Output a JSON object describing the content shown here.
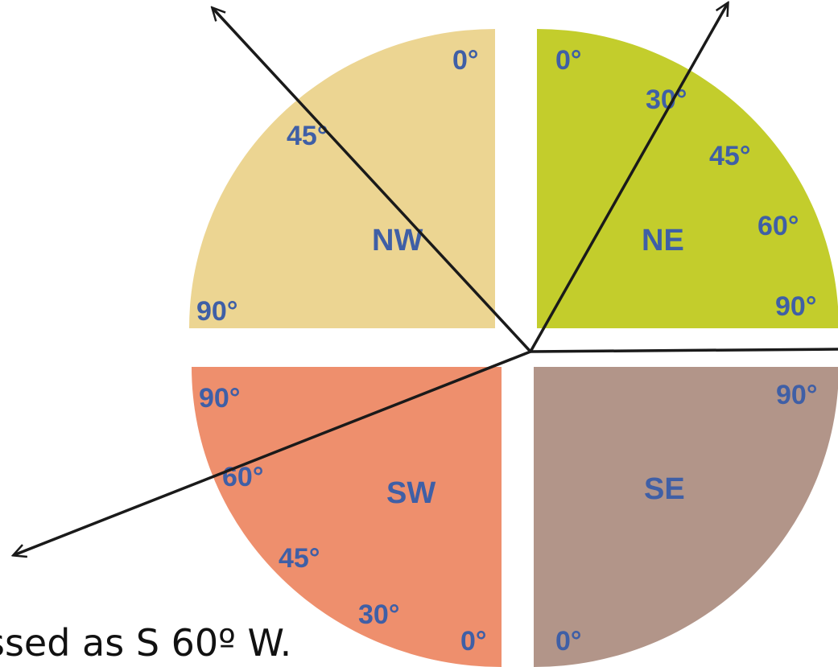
{
  "quadrants": {
    "nw": {
      "name": "NW",
      "color": "#ecd592",
      "labels": [
        "0°",
        "45°",
        "90°"
      ]
    },
    "ne": {
      "name": "NE",
      "color": "#c3cd2c",
      "labels": [
        "0°",
        "30°",
        "45°",
        "60°",
        "90°"
      ]
    },
    "sw": {
      "name": "SW",
      "color": "#ee8f6d",
      "labels": [
        "90°",
        "60°",
        "45°",
        "30°",
        "0°"
      ]
    },
    "se": {
      "name": "SE",
      "color": "#b29589",
      "labels": [
        "90°",
        "0°"
      ]
    }
  },
  "label_color": "#3f5fa6",
  "line_color": "#1a1a1a",
  "caption": "ssed as S 60º W."
}
